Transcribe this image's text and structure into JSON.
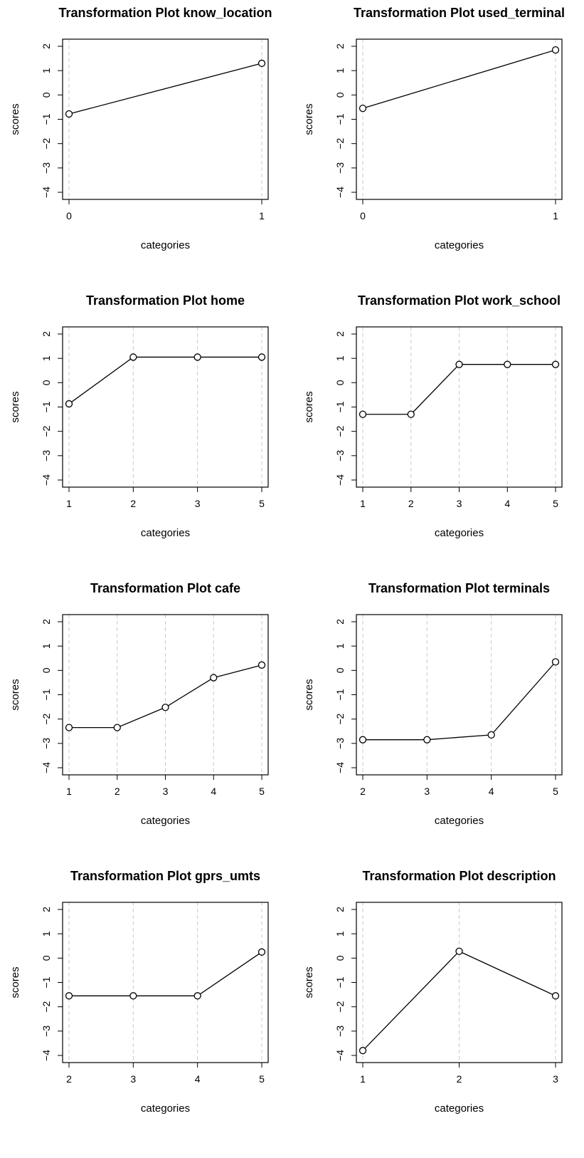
{
  "chart_data": [
    {
      "type": "line",
      "title": "Transformation Plot know_location",
      "xlabel": "categories",
      "ylabel": "scores",
      "categories": [
        "0",
        "1"
      ],
      "values": [
        -0.78,
        1.3
      ],
      "ylim": [
        -4,
        2
      ],
      "yticks": [
        "2",
        "1",
        "0",
        "−1",
        "−2",
        "−3",
        "−4"
      ],
      "grid": "vertical dashed"
    },
    {
      "type": "line",
      "title": "Transformation Plot used_terminal",
      "xlabel": "categories",
      "ylabel": "scores",
      "categories": [
        "0",
        "1"
      ],
      "values": [
        -0.55,
        1.85
      ],
      "ylim": [
        -4,
        2
      ],
      "yticks": [
        "2",
        "1",
        "0",
        "−1",
        "−2",
        "−3",
        "−4"
      ],
      "grid": "vertical dashed"
    },
    {
      "type": "line",
      "title": "Transformation Plot home",
      "xlabel": "categories",
      "ylabel": "scores",
      "categories": [
        "1",
        "2",
        "3",
        "5"
      ],
      "values": [
        -0.87,
        1.05,
        1.05,
        1.05
      ],
      "ylim": [
        -4,
        2
      ],
      "yticks": [
        "2",
        "1",
        "0",
        "−1",
        "−2",
        "−3",
        "−4"
      ],
      "grid": "vertical dashed"
    },
    {
      "type": "line",
      "title": "Transformation Plot work_school",
      "xlabel": "categories",
      "ylabel": "scores",
      "categories": [
        "1",
        "2",
        "3",
        "4",
        "5"
      ],
      "values": [
        -1.3,
        -1.3,
        0.75,
        0.75,
        0.75
      ],
      "ylim": [
        -4,
        2
      ],
      "yticks": [
        "2",
        "1",
        "0",
        "−1",
        "−2",
        "−3",
        "−4"
      ],
      "grid": "vertical dashed"
    },
    {
      "type": "line",
      "title": "Transformation Plot cafe",
      "xlabel": "categories",
      "ylabel": "scores",
      "categories": [
        "1",
        "2",
        "3",
        "4",
        "5"
      ],
      "values": [
        -2.35,
        -2.35,
        -1.52,
        -0.3,
        0.22
      ],
      "ylim": [
        -4,
        2
      ],
      "yticks": [
        "2",
        "1",
        "0",
        "−1",
        "−2",
        "−3",
        "−4"
      ],
      "grid": "vertical dashed"
    },
    {
      "type": "line",
      "title": "Transformation Plot terminals",
      "xlabel": "categories",
      "ylabel": "scores",
      "categories": [
        "2",
        "3",
        "4",
        "5"
      ],
      "values": [
        -2.85,
        -2.85,
        -2.65,
        0.35
      ],
      "ylim": [
        -4,
        2
      ],
      "yticks": [
        "2",
        "1",
        "0",
        "−1",
        "−2",
        "−3",
        "−4"
      ],
      "grid": "vertical dashed"
    },
    {
      "type": "line",
      "title": "Transformation Plot gprs_umts",
      "xlabel": "categories",
      "ylabel": "scores",
      "categories": [
        "2",
        "3",
        "4",
        "5"
      ],
      "values": [
        -1.55,
        -1.55,
        -1.55,
        0.25
      ],
      "ylim": [
        -4,
        2
      ],
      "yticks": [
        "2",
        "1",
        "0",
        "−1",
        "−2",
        "−3",
        "−4"
      ],
      "grid": "vertical dashed"
    },
    {
      "type": "line",
      "title": "Transformation Plot description",
      "xlabel": "categories",
      "ylabel": "scores",
      "categories": [
        "1",
        "2",
        "3"
      ],
      "values": [
        -3.8,
        0.28,
        -1.55
      ],
      "ylim": [
        -4,
        2
      ],
      "yticks": [
        "2",
        "1",
        "0",
        "−1",
        "−2",
        "−3",
        "−4"
      ],
      "grid": "vertical dashed"
    }
  ]
}
